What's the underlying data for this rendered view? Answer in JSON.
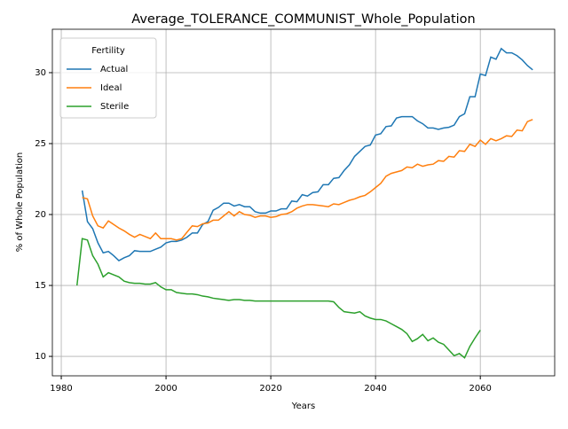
{
  "chart_data": {
    "type": "line",
    "title": "Average_TOLERANCE_COMMUNIST_Whole_Population",
    "xlabel": "Years",
    "ylabel": "% of Whole Population",
    "legend_title": "Fertility",
    "legend": "upper left",
    "grid": true,
    "xlim": [
      1978.3,
      2074.2
    ],
    "ylim": [
      8.63,
      33.06
    ],
    "xticks": [
      1980,
      2000,
      2020,
      2040,
      2060
    ],
    "yticks": [
      10,
      15,
      20,
      25,
      30
    ],
    "x": [
      1983,
      1984,
      1985,
      1986,
      1987,
      1988,
      1989,
      1990,
      1991,
      1992,
      1993,
      1994,
      1995,
      1996,
      1997,
      1998,
      1999,
      2000,
      2001,
      2002,
      2003,
      2004,
      2005,
      2006,
      2007,
      2008,
      2009,
      2010,
      2011,
      2012,
      2013,
      2014,
      2015,
      2016,
      2017,
      2018,
      2019,
      2020,
      2021,
      2022,
      2023,
      2024,
      2025,
      2026,
      2027,
      2028,
      2029,
      2030,
      2031,
      2032,
      2033,
      2034,
      2035,
      2036,
      2037,
      2038,
      2039,
      2040,
      2041,
      2042,
      2043,
      2044,
      2045,
      2046,
      2047,
      2048,
      2049,
      2050,
      2051,
      2052,
      2053,
      2054,
      2055,
      2056,
      2057,
      2058,
      2059,
      2060,
      2061,
      2062,
      2063,
      2064,
      2065,
      2066,
      2067,
      2068,
      2069,
      2070
    ],
    "series": [
      {
        "name": "Actual",
        "color": "#1f77b4",
        "values": [
          null,
          21.7,
          19.5,
          19.0,
          18.0,
          17.3,
          17.4,
          17.1,
          16.75,
          16.95,
          17.1,
          17.45,
          17.4,
          17.4,
          17.4,
          17.55,
          17.7,
          18.0,
          18.1,
          18.1,
          18.2,
          18.4,
          18.7,
          18.7,
          19.3,
          19.5,
          20.3,
          20.5,
          20.8,
          20.8,
          20.6,
          20.7,
          20.55,
          20.55,
          20.2,
          20.1,
          20.1,
          20.25,
          20.25,
          20.4,
          20.4,
          20.95,
          20.9,
          21.4,
          21.3,
          21.55,
          21.6,
          22.1,
          22.1,
          22.55,
          22.6,
          23.1,
          23.5,
          24.1,
          24.45,
          24.8,
          24.9,
          25.6,
          25.7,
          26.2,
          26.25,
          26.8,
          26.9,
          26.9,
          26.9,
          26.6,
          26.4,
          26.1,
          26.1,
          26.0,
          26.1,
          26.15,
          26.3,
          26.9,
          27.1,
          28.3,
          28.3,
          29.9,
          29.8,
          31.1,
          30.95,
          31.7,
          31.4,
          31.4,
          31.2,
          30.9,
          30.5,
          30.2
        ]
      },
      {
        "name": "Ideal",
        "color": "#ff7f0e",
        "values": [
          null,
          21.2,
          21.1,
          19.9,
          19.2,
          19.05,
          19.55,
          19.3,
          19.05,
          18.85,
          18.6,
          18.4,
          18.6,
          18.45,
          18.3,
          18.7,
          18.3,
          18.3,
          18.3,
          18.2,
          18.3,
          18.75,
          19.2,
          19.15,
          19.35,
          19.4,
          19.6,
          19.6,
          19.9,
          20.2,
          19.9,
          20.2,
          20.0,
          19.95,
          19.8,
          19.9,
          19.9,
          19.8,
          19.85,
          20.0,
          20.05,
          20.2,
          20.45,
          20.6,
          20.7,
          20.7,
          20.65,
          20.6,
          20.55,
          20.75,
          20.7,
          20.85,
          21.0,
          21.1,
          21.25,
          21.35,
          21.6,
          21.9,
          22.2,
          22.7,
          22.9,
          23.0,
          23.1,
          23.35,
          23.3,
          23.55,
          23.4,
          23.5,
          23.55,
          23.8,
          23.75,
          24.1,
          24.05,
          24.5,
          24.45,
          24.95,
          24.8,
          25.25,
          24.95,
          25.35,
          25.2,
          25.35,
          25.55,
          25.5,
          25.95,
          25.9,
          26.55,
          26.7
        ]
      },
      {
        "name": "Sterile",
        "color": "#2ca02c",
        "values": [
          15.0,
          18.3,
          18.2,
          17.1,
          16.5,
          15.6,
          15.9,
          15.75,
          15.6,
          15.3,
          15.2,
          15.15,
          15.15,
          15.1,
          15.1,
          15.2,
          14.9,
          14.7,
          14.7,
          14.5,
          14.45,
          14.4,
          14.4,
          14.35,
          14.25,
          14.2,
          14.1,
          14.05,
          14.0,
          13.95,
          14.0,
          14.0,
          13.95,
          13.95,
          13.9,
          13.9,
          13.9,
          13.9,
          13.9,
          13.9,
          13.9,
          13.9,
          13.9,
          13.9,
          13.9,
          13.9,
          13.9,
          13.9,
          13.9,
          13.85,
          13.45,
          13.15,
          13.1,
          13.05,
          13.15,
          12.85,
          12.7,
          12.6,
          12.6,
          12.5,
          12.3,
          12.1,
          11.9,
          11.6,
          11.05,
          11.25,
          11.55,
          11.1,
          11.3,
          11.0,
          10.85,
          10.45,
          10.05,
          10.2,
          9.9,
          10.7,
          11.3,
          11.85,
          null,
          null,
          null,
          null,
          null,
          null,
          null,
          null,
          null,
          null
        ]
      }
    ]
  }
}
